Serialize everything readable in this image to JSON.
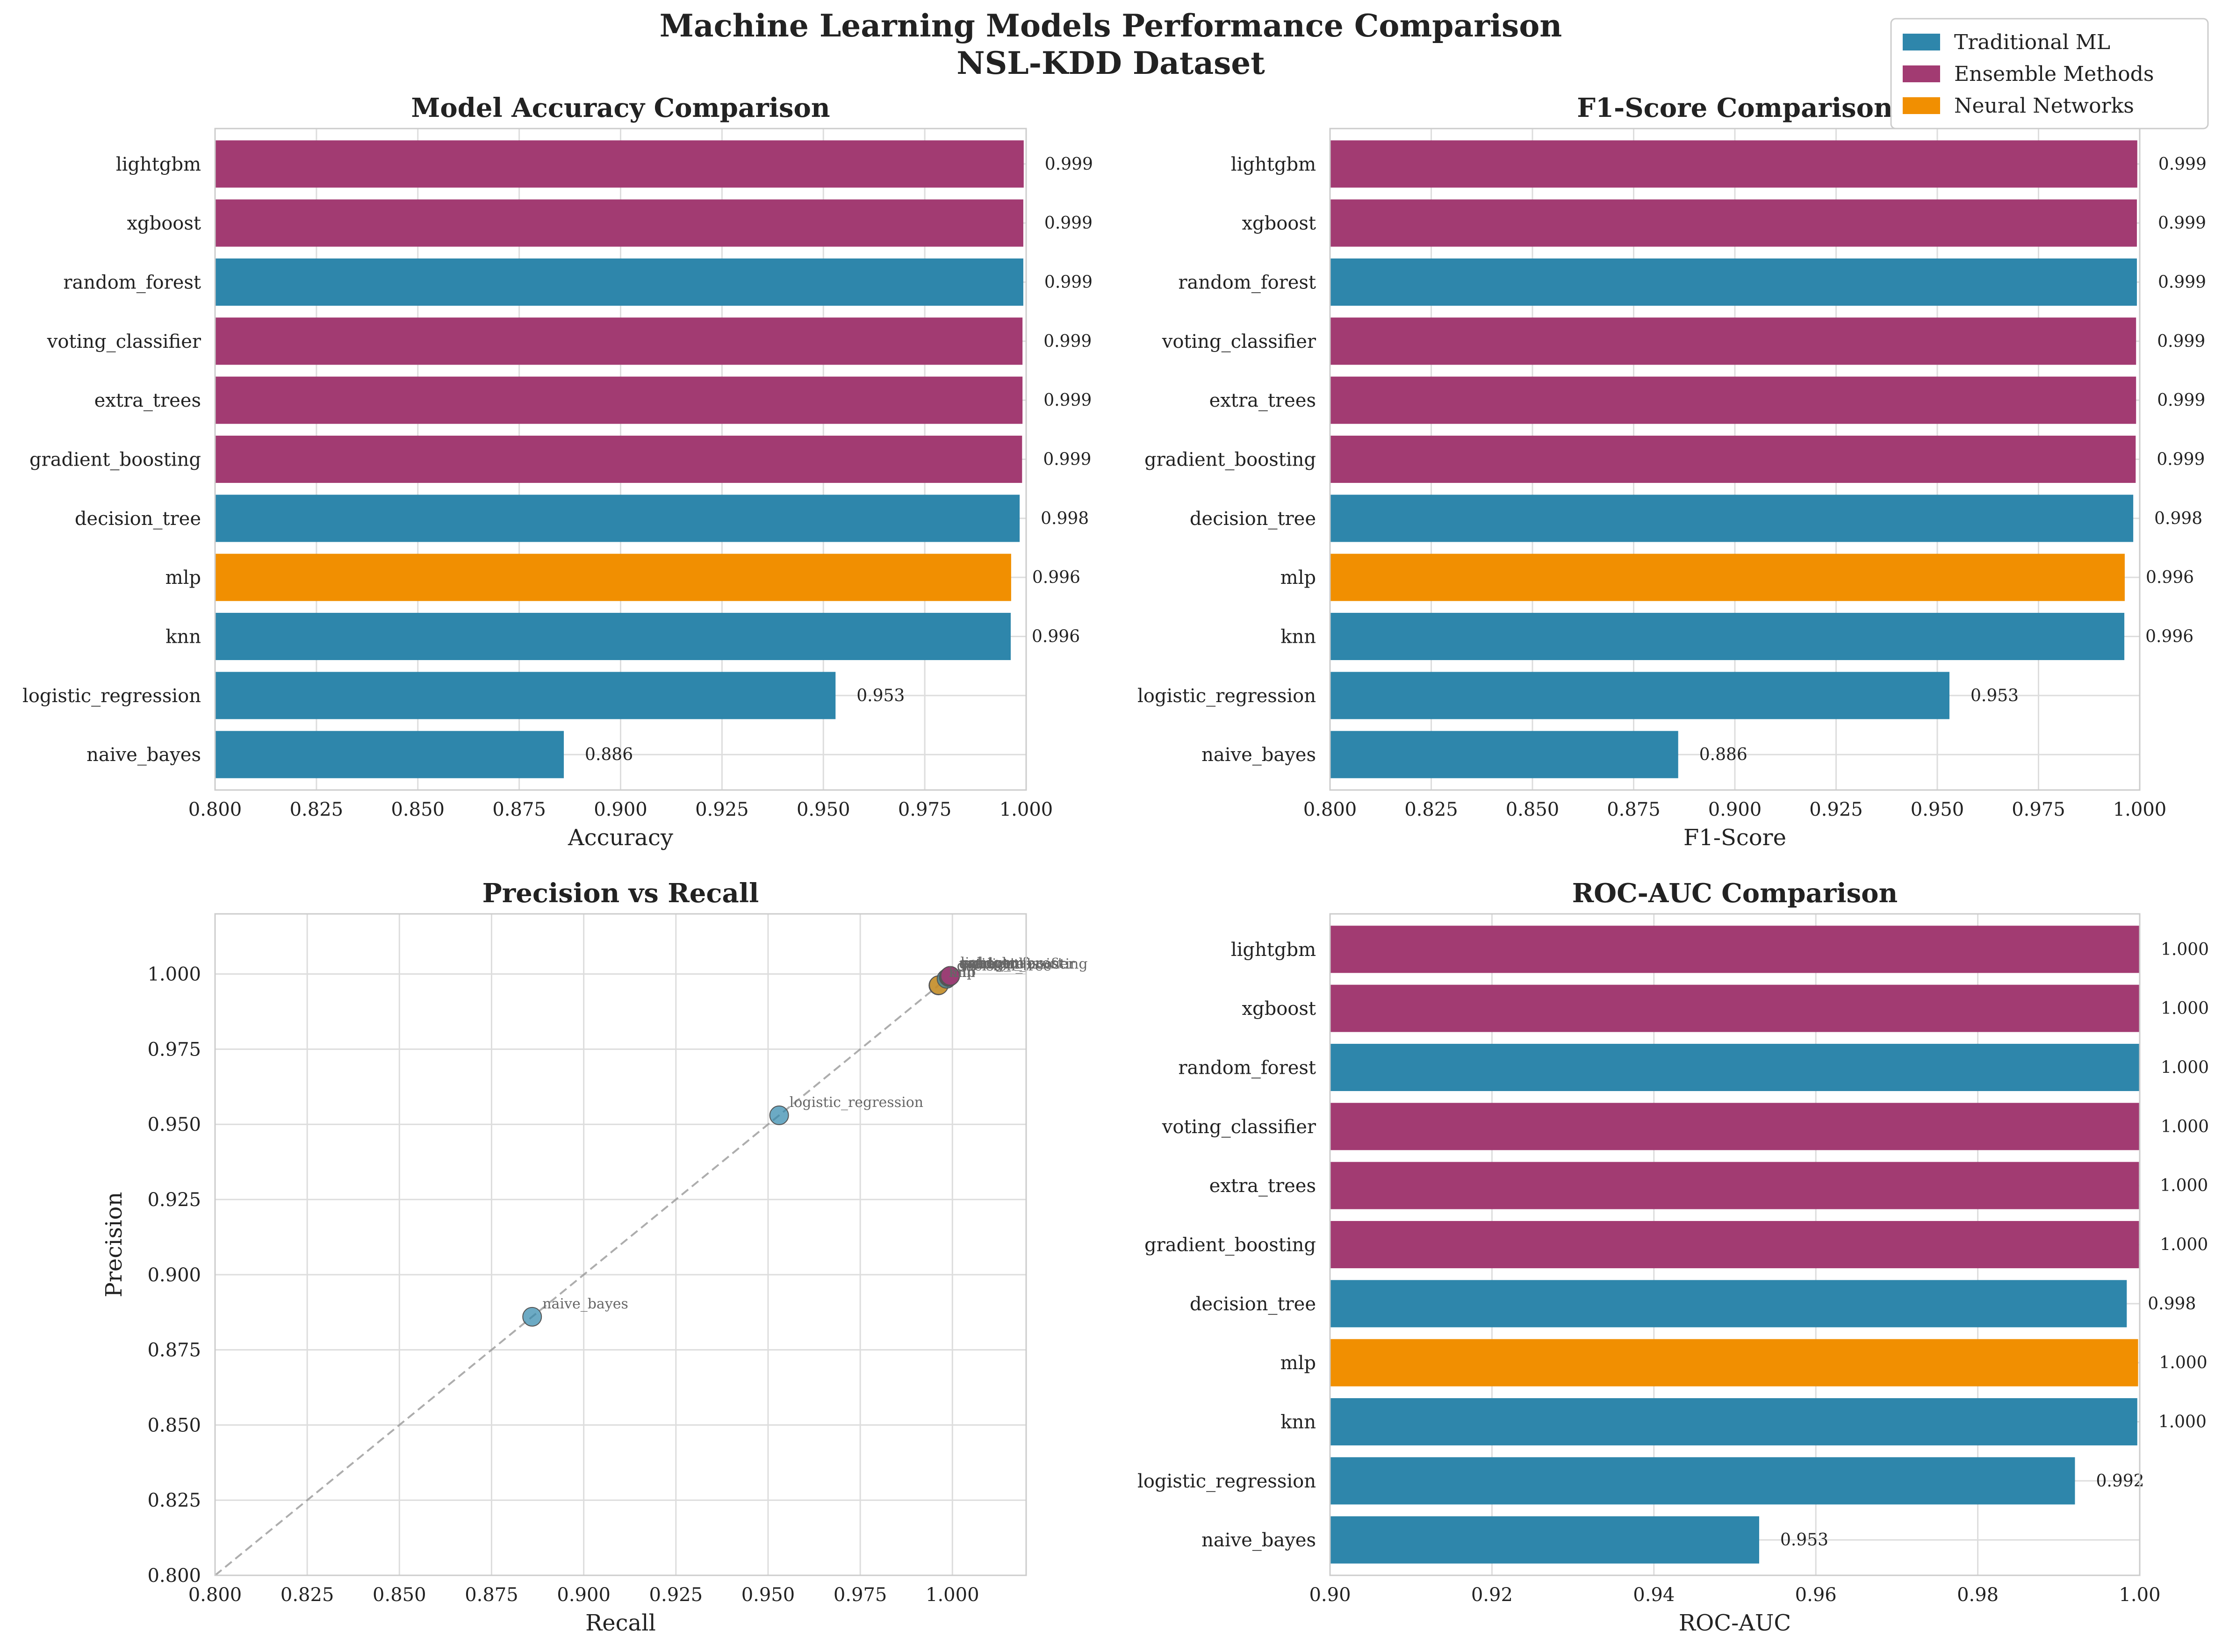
{
  "figure": {
    "title_line1": "Machine Learning Models Performance Comparison",
    "title_line2": "NSL-KDD Dataset"
  },
  "legend": {
    "placement": "top-right",
    "entries": [
      {
        "label": "Traditional ML",
        "color": "#2E86AB"
      },
      {
        "label": "Ensemble Methods",
        "color": "#A23B72"
      },
      {
        "label": "Neural Networks",
        "color": "#F18F01"
      }
    ]
  },
  "colors": {
    "traditional": "#2E86AB",
    "ensemble": "#A23B72",
    "neural": "#F18F01",
    "grid": "#dddddd",
    "spine": "#cccccc",
    "text": "#222222"
  },
  "chart_data": [
    {
      "type": "bar",
      "orientation": "horizontal",
      "title": "Model Accuracy Comparison",
      "xlabel": "Accuracy",
      "ylabel": "",
      "xlim": [
        0.8,
        1.0
      ],
      "xticks": [
        "0.800",
        "0.825",
        "0.850",
        "0.875",
        "0.900",
        "0.925",
        "0.950",
        "0.975",
        "1.000"
      ],
      "grid": true,
      "categories": [
        "lightgbm",
        "xgboost",
        "random_forest",
        "voting_classifier",
        "extra_trees",
        "gradient_boosting",
        "decision_tree",
        "mlp",
        "knn",
        "logistic_regression",
        "naive_bayes"
      ],
      "groups": [
        "ensemble",
        "ensemble",
        "traditional",
        "ensemble",
        "ensemble",
        "ensemble",
        "traditional",
        "neural",
        "traditional",
        "traditional",
        "traditional"
      ],
      "values": [
        0.9994,
        0.9993,
        0.9993,
        0.9991,
        0.9991,
        0.999,
        0.9984,
        0.9963,
        0.9962,
        0.953,
        0.886
      ],
      "labels": [
        "0.999",
        "0.999",
        "0.999",
        "0.999",
        "0.999",
        "0.999",
        "0.998",
        "0.996",
        "0.996",
        "0.953",
        "0.886"
      ]
    },
    {
      "type": "bar",
      "orientation": "horizontal",
      "title": "F1-Score Comparison",
      "xlabel": "F1-Score",
      "ylabel": "",
      "xlim": [
        0.8,
        1.0
      ],
      "xticks": [
        "0.800",
        "0.825",
        "0.850",
        "0.875",
        "0.900",
        "0.925",
        "0.950",
        "0.975",
        "1.000"
      ],
      "grid": true,
      "categories": [
        "lightgbm",
        "xgboost",
        "random_forest",
        "voting_classifier",
        "extra_trees",
        "gradient_boosting",
        "decision_tree",
        "mlp",
        "knn",
        "logistic_regression",
        "naive_bayes"
      ],
      "groups": [
        "ensemble",
        "ensemble",
        "traditional",
        "ensemble",
        "ensemble",
        "ensemble",
        "traditional",
        "neural",
        "traditional",
        "traditional",
        "traditional"
      ],
      "values": [
        0.9994,
        0.9993,
        0.9993,
        0.9991,
        0.9991,
        0.999,
        0.9984,
        0.9963,
        0.9962,
        0.953,
        0.886
      ],
      "labels": [
        "0.999",
        "0.999",
        "0.999",
        "0.999",
        "0.999",
        "0.999",
        "0.998",
        "0.996",
        "0.996",
        "0.953",
        "0.886"
      ]
    },
    {
      "type": "scatter",
      "title": "Precision vs Recall",
      "xlabel": "Recall",
      "ylabel": "Precision",
      "xlim": [
        0.8,
        1.02
      ],
      "ylim": [
        0.8,
        1.02
      ],
      "xticks": [
        "0.800",
        "0.825",
        "0.850",
        "0.875",
        "0.900",
        "0.925",
        "0.950",
        "0.975",
        "1.000"
      ],
      "yticks": [
        "0.800",
        "0.825",
        "0.850",
        "0.875",
        "0.900",
        "0.925",
        "0.950",
        "0.975",
        "1.000"
      ],
      "grid": true,
      "diagonal_reference": true,
      "points": [
        {
          "label": "lightgbm",
          "group": "ensemble",
          "x": 0.9994,
          "y": 0.9994
        },
        {
          "label": "xgboost",
          "group": "ensemble",
          "x": 0.9993,
          "y": 0.9993
        },
        {
          "label": "random_forest",
          "group": "traditional",
          "x": 0.9993,
          "y": 0.9993
        },
        {
          "label": "voting_classifier",
          "group": "ensemble",
          "x": 0.9991,
          "y": 0.9991
        },
        {
          "label": "extra_trees",
          "group": "ensemble",
          "x": 0.9991,
          "y": 0.9991
        },
        {
          "label": "gradient_boosting",
          "group": "ensemble",
          "x": 0.999,
          "y": 0.999
        },
        {
          "label": "decision_tree",
          "group": "traditional",
          "x": 0.9984,
          "y": 0.9984
        },
        {
          "label": "mlp",
          "group": "neural",
          "x": 0.9963,
          "y": 0.9963
        },
        {
          "label": "knn",
          "group": "traditional",
          "x": 0.9962,
          "y": 0.9962
        },
        {
          "label": "logistic_regression",
          "group": "traditional",
          "x": 0.953,
          "y": 0.953
        },
        {
          "label": "naive_bayes",
          "group": "traditional",
          "x": 0.886,
          "y": 0.886
        }
      ]
    },
    {
      "type": "bar",
      "orientation": "horizontal",
      "title": "ROC-AUC Comparison",
      "xlabel": "ROC-AUC",
      "ylabel": "",
      "xlim": [
        0.9,
        1.0
      ],
      "xticks": [
        "0.90",
        "0.92",
        "0.94",
        "0.96",
        "0.98",
        "1.00"
      ],
      "grid": true,
      "categories": [
        "lightgbm",
        "xgboost",
        "random_forest",
        "voting_classifier",
        "extra_trees",
        "gradient_boosting",
        "decision_tree",
        "mlp",
        "knn",
        "logistic_regression",
        "naive_bayes"
      ],
      "groups": [
        "ensemble",
        "ensemble",
        "traditional",
        "ensemble",
        "ensemble",
        "ensemble",
        "traditional",
        "neural",
        "traditional",
        "traditional",
        "traditional"
      ],
      "values": [
        1.0,
        1.0,
        1.0,
        1.0,
        0.9999,
        0.9999,
        0.9984,
        0.9998,
        0.9997,
        0.992,
        0.953
      ],
      "labels": [
        "1.000",
        "1.000",
        "1.000",
        "1.000",
        "1.000",
        "1.000",
        "0.998",
        "1.000",
        "1.000",
        "0.992",
        "0.953"
      ]
    }
  ]
}
